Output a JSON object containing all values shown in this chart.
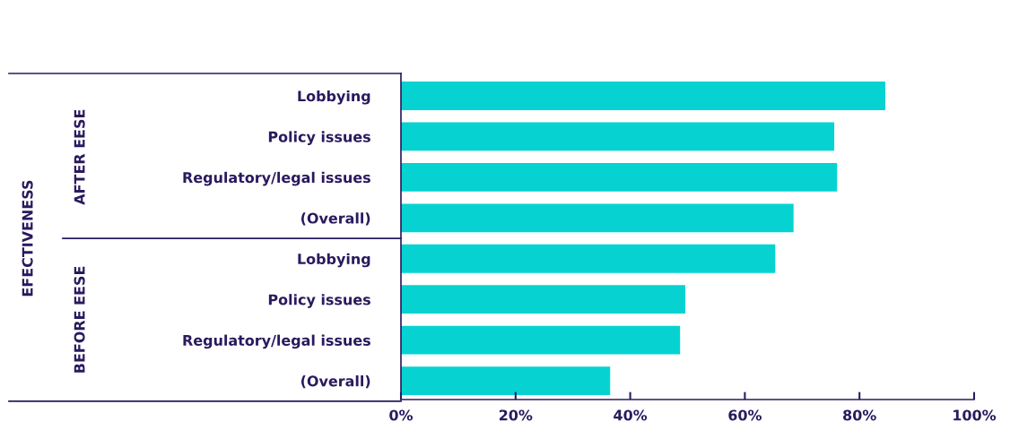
{
  "chart_data": {
    "type": "bar",
    "orientation": "horizontal",
    "annotations": [
      "EFECTIVENESS",
      "AFTER EESE",
      "BEFORE EESE"
    ],
    "categories": [
      "Lobbying",
      "Policy issues",
      "Regulatory/legal issues",
      "(Overall)",
      "Lobbying",
      "Policy issues",
      "Regulatory/legal issues",
      "(Overall)"
    ],
    "values": [
      84.5,
      75.6,
      76.1,
      68.5,
      65.3,
      49.6,
      48.7,
      36.5
    ],
    "color": "#06d3d1",
    "xlim": [
      0,
      100
    ],
    "xticks": [
      {
        "value": 0,
        "label": "0%"
      },
      {
        "value": 20,
        "label": "20%"
      },
      {
        "value": 40,
        "label": "40%"
      },
      {
        "value": 60,
        "label": "60%"
      },
      {
        "value": 80,
        "label": "80%"
      },
      {
        "value": 100,
        "label": "100%"
      }
    ],
    "grid": false,
    "legend": false
  }
}
